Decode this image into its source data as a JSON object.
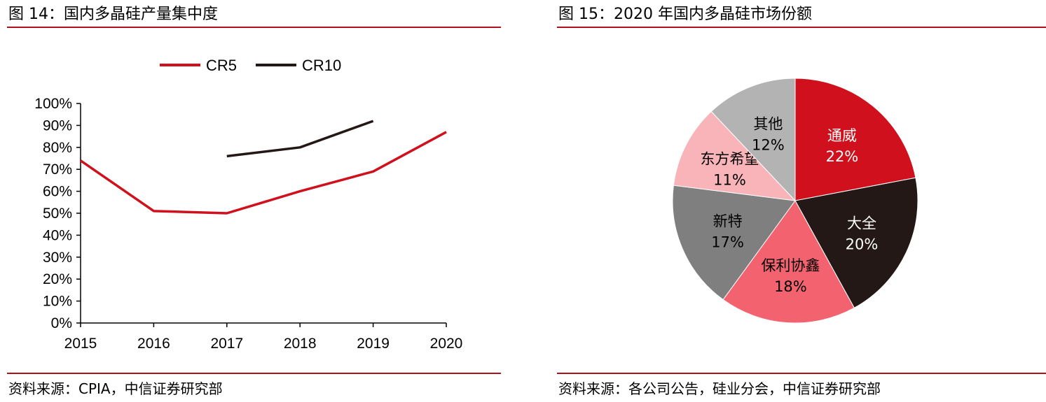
{
  "left": {
    "title": "图 14：国内多晶硅产量集中度",
    "source": "资料来源：CPIA，中信证券研究部"
  },
  "right": {
    "title": "图 15：2020 年国内多晶硅市场份额",
    "source": "资料来源：各公司公告，硅业分会，中信证券研究部"
  },
  "colors": {
    "rule": "#b0101a",
    "cr5": "#d0101c",
    "cr10": "#231815"
  },
  "chart_data": [
    {
      "type": "line",
      "title": "国内多晶硅产量集中度",
      "x": [
        "2015",
        "2016",
        "2017",
        "2018",
        "2019",
        "2020"
      ],
      "y_ticks": [
        "0%",
        "10%",
        "20%",
        "30%",
        "40%",
        "50%",
        "60%",
        "70%",
        "80%",
        "90%",
        "100%"
      ],
      "ylim": [
        0,
        100
      ],
      "legend_position": "top",
      "series": [
        {
          "name": "CR5",
          "color": "#d0101c",
          "values": [
            74,
            51,
            50,
            60,
            69,
            87
          ]
        },
        {
          "name": "CR10",
          "color": "#231815",
          "values": [
            null,
            null,
            76,
            80,
            92,
            null
          ]
        }
      ]
    },
    {
      "type": "pie",
      "title": "2020 年国内多晶硅市场份额",
      "slices": [
        {
          "name": "通威",
          "value": 22,
          "label": "22%",
          "color": "#d0101c",
          "text_color": "#ffffff"
        },
        {
          "name": "大全",
          "value": 20,
          "label": "20%",
          "color": "#231815",
          "text_color": "#ffffff"
        },
        {
          "name": "保利协鑫",
          "value": 18,
          "label": "18%",
          "color": "#f2636f",
          "text_color": "#000000"
        },
        {
          "name": "新特",
          "value": 17,
          "label": "17%",
          "color": "#7f7f7f",
          "text_color": "#000000"
        },
        {
          "name": "东方希望",
          "value": 11,
          "label": "11%",
          "color": "#f8b4b8",
          "text_color": "#000000"
        },
        {
          "name": "其他",
          "value": 12,
          "label": "12%",
          "color": "#b3b3b3",
          "text_color": "#000000"
        }
      ]
    }
  ]
}
